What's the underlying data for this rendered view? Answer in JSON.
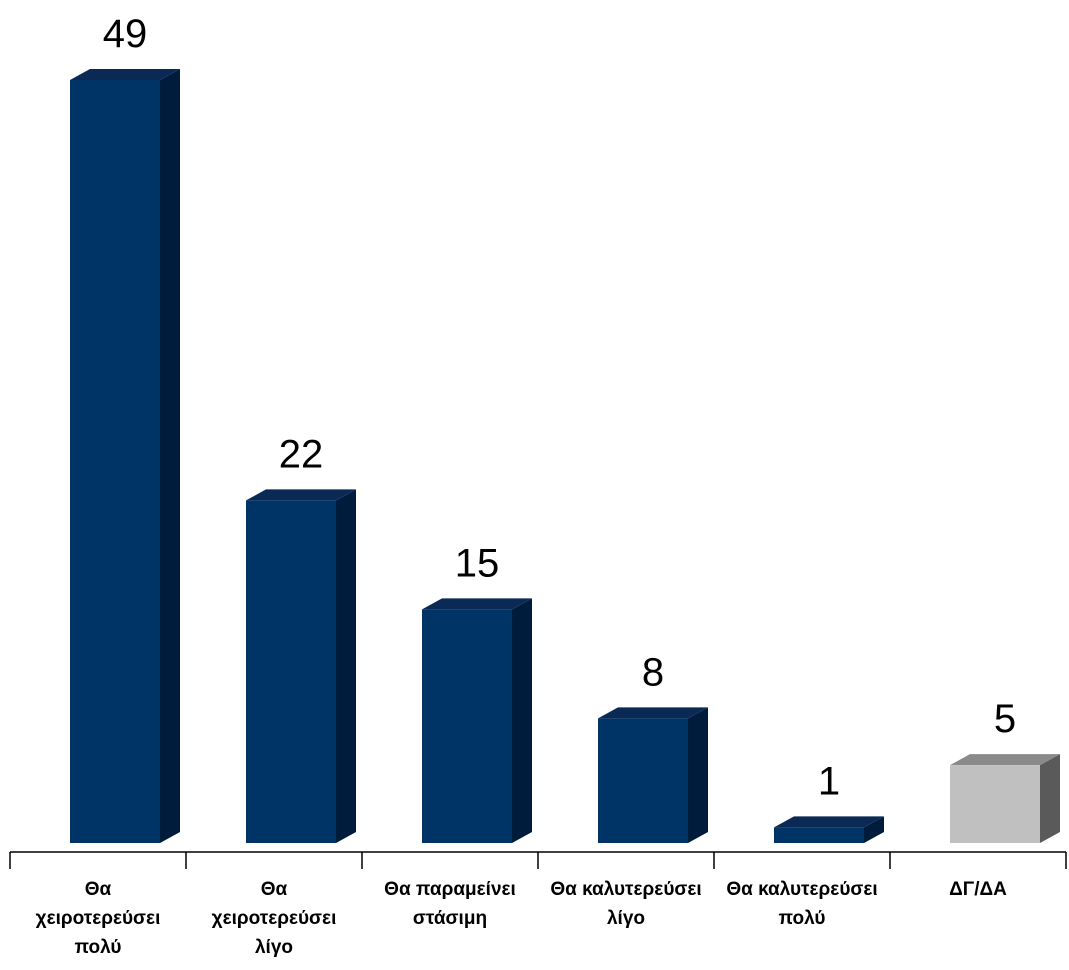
{
  "chart_data": {
    "type": "bar",
    "categories": [
      [
        "Θα",
        "χειροτερεύσει",
        "πολύ"
      ],
      [
        "Θα",
        "χειροτερεύσει",
        "λίγο"
      ],
      [
        "Θα παραμείνει",
        "στάσιμη"
      ],
      [
        "Θα καλυτερεύσει",
        "λίγο"
      ],
      [
        "Θα καλυτερεύσει",
        "πολύ"
      ],
      [
        "ΔΓ/ΔΑ"
      ]
    ],
    "values": [
      49,
      22,
      15,
      8,
      1,
      5
    ],
    "data_labels": [
      "49",
      "22",
      "15",
      "8",
      "1",
      "5"
    ],
    "ylim": [
      0,
      49
    ],
    "grid": false,
    "bar_colors": [
      "#003366",
      "#003366",
      "#003366",
      "#003366",
      "#003366",
      "#c0c0c0"
    ],
    "bar_side_colors": [
      "#001c3d",
      "#001c3d",
      "#001c3d",
      "#001c3d",
      "#001c3d",
      "#5a5a5a"
    ],
    "bar_top_colors": [
      "#0a2a55",
      "#0a2a55",
      "#0a2a55",
      "#0a2a55",
      "#0a2a55",
      "#8a8a8a"
    ],
    "axis_color": "#000000"
  }
}
